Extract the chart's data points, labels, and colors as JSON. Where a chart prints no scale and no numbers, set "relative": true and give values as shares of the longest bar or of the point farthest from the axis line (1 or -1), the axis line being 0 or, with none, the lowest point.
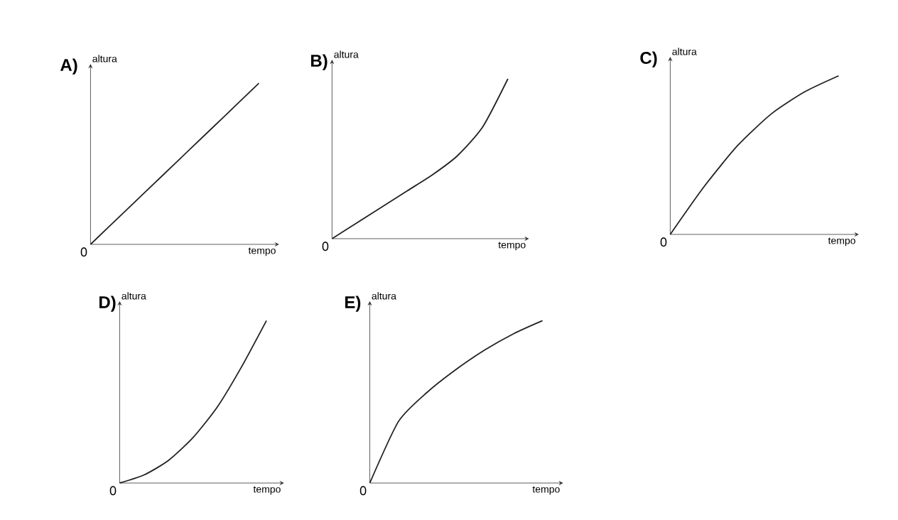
{
  "chart_data": [
    {
      "type": "line",
      "title": "A)",
      "xlabel": "tempo",
      "ylabel": "altura",
      "annotations": [
        "0"
      ],
      "relative": true,
      "categories": [
        null,
        null,
        null,
        null,
        null,
        null
      ],
      "series": [
        {
          "color": "#222222",
          "values": [
            0,
            0.2,
            0.4,
            0.6,
            0.8,
            1
          ]
        }
      ]
    },
    {
      "type": "line",
      "title": "B)",
      "xlabel": "tempo",
      "ylabel": "altura",
      "annotations": [
        "0"
      ],
      "relative": true,
      "categories": [
        null,
        null,
        null,
        null,
        null,
        null,
        null,
        null
      ],
      "series": [
        {
          "color": "#222222",
          "values": [
            0,
            0.1,
            0.2,
            0.3,
            0.4,
            0.52,
            0.7,
            1
          ]
        }
      ]
    },
    {
      "type": "line",
      "title": "C)",
      "xlabel": "tempo",
      "ylabel": "altura",
      "annotations": [
        "0"
      ],
      "relative": true,
      "categories": [
        null,
        null,
        null,
        null,
        null,
        null
      ],
      "series": [
        {
          "color": "#222222",
          "values": [
            0,
            0.3,
            0.56,
            0.76,
            0.9,
            1
          ]
        }
      ]
    },
    {
      "type": "line",
      "title": "D)",
      "xlabel": "tempo",
      "ylabel": "altura",
      "annotations": [
        "0"
      ],
      "relative": true,
      "categories": [
        null,
        null,
        null,
        null,
        null,
        null,
        null
      ],
      "series": [
        {
          "color": "#222222",
          "values": [
            0,
            0.05,
            0.14,
            0.28,
            0.47,
            0.72,
            1
          ]
        }
      ]
    },
    {
      "type": "line",
      "title": "E)",
      "xlabel": "tempo",
      "ylabel": "altura",
      "annotations": [
        "0"
      ],
      "relative": true,
      "categories": [
        null,
        null,
        null,
        null,
        null,
        null,
        null
      ],
      "series": [
        {
          "color": "#222222",
          "values": [
            0,
            0.38,
            0.56,
            0.7,
            0.82,
            0.92,
            1
          ]
        }
      ]
    }
  ]
}
